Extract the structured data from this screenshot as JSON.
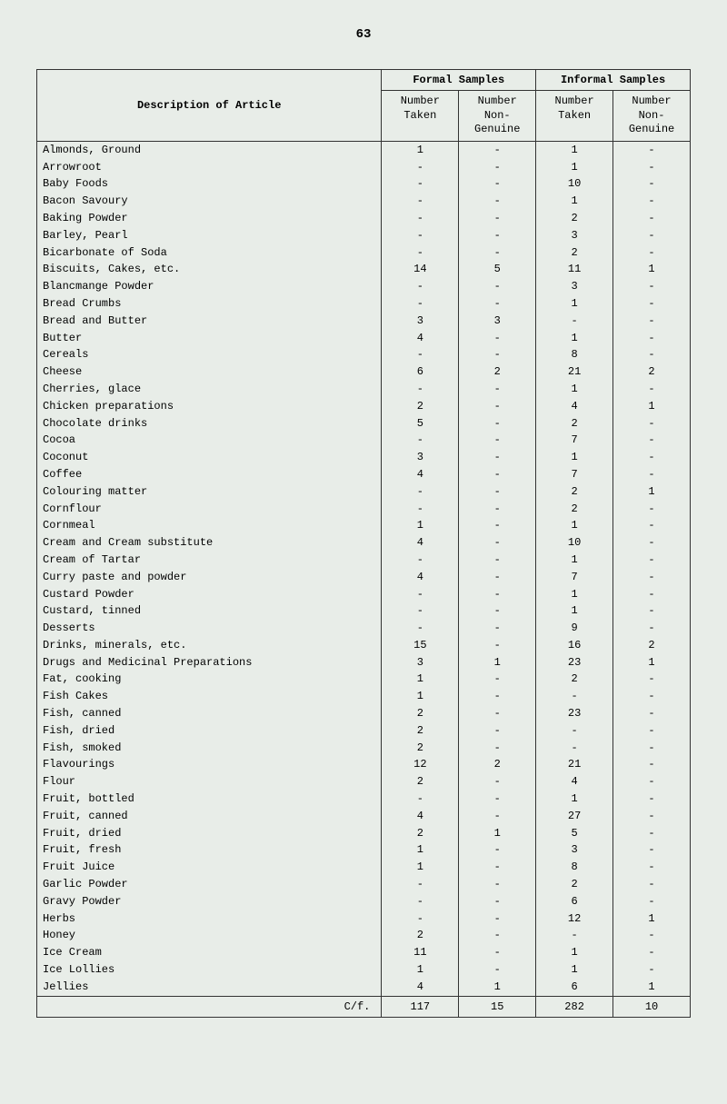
{
  "page_number": "63",
  "table": {
    "header": {
      "description": "Description of Article",
      "formal_group": "Formal Samples",
      "informal_group": "Informal Samples",
      "col_taken": "Number\nTaken",
      "col_nongenuine": "Number\nNon-\nGenuine"
    },
    "rows": [
      {
        "d": "Almonds, Ground",
        "ft": "1",
        "fn": "-",
        "it": "1",
        "in": "-"
      },
      {
        "d": "Arrowroot",
        "ft": "-",
        "fn": "-",
        "it": "1",
        "in": "-"
      },
      {
        "d": "Baby Foods",
        "ft": "-",
        "fn": "-",
        "it": "10",
        "in": "-"
      },
      {
        "d": "Bacon Savoury",
        "ft": "-",
        "fn": "-",
        "it": "1",
        "in": "-"
      },
      {
        "d": "Baking Powder",
        "ft": "-",
        "fn": "-",
        "it": "2",
        "in": "-"
      },
      {
        "d": "Barley, Pearl",
        "ft": "-",
        "fn": "-",
        "it": "3",
        "in": "-"
      },
      {
        "d": "Bicarbonate of Soda",
        "ft": "-",
        "fn": "-",
        "it": "2",
        "in": "-"
      },
      {
        "d": "Biscuits, Cakes, etc.",
        "ft": "14",
        "fn": "5",
        "it": "11",
        "in": "1"
      },
      {
        "d": "Blancmange Powder",
        "ft": "-",
        "fn": "-",
        "it": "3",
        "in": "-"
      },
      {
        "d": "Bread Crumbs",
        "ft": "-",
        "fn": "-",
        "it": "1",
        "in": "-"
      },
      {
        "d": "Bread and Butter",
        "ft": "3",
        "fn": "3",
        "it": "-",
        "in": "-"
      },
      {
        "d": "Butter",
        "ft": "4",
        "fn": "-",
        "it": "1",
        "in": "-"
      },
      {
        "d": "Cereals",
        "ft": "-",
        "fn": "-",
        "it": "8",
        "in": "-"
      },
      {
        "d": "Cheese",
        "ft": "6",
        "fn": "2",
        "it": "21",
        "in": "2"
      },
      {
        "d": "Cherries, glace",
        "ft": "-",
        "fn": "-",
        "it": "1",
        "in": "-"
      },
      {
        "d": "Chicken preparations",
        "ft": "2",
        "fn": "-",
        "it": "4",
        "in": "1"
      },
      {
        "d": "Chocolate drinks",
        "ft": "5",
        "fn": "-",
        "it": "2",
        "in": "-"
      },
      {
        "d": "Cocoa",
        "ft": "-",
        "fn": "-",
        "it": "7",
        "in": "-"
      },
      {
        "d": "Coconut",
        "ft": "3",
        "fn": "-",
        "it": "1",
        "in": "-"
      },
      {
        "d": "Coffee",
        "ft": "4",
        "fn": "-",
        "it": "7",
        "in": "-"
      },
      {
        "d": "Colouring matter",
        "ft": "-",
        "fn": "-",
        "it": "2",
        "in": "1"
      },
      {
        "d": "Cornflour",
        "ft": "-",
        "fn": "-",
        "it": "2",
        "in": "-"
      },
      {
        "d": "Cornmeal",
        "ft": "1",
        "fn": "-",
        "it": "1",
        "in": "-"
      },
      {
        "d": "Cream and Cream substitute",
        "ft": "4",
        "fn": "-",
        "it": "10",
        "in": "-"
      },
      {
        "d": "Cream of Tartar",
        "ft": "-",
        "fn": "-",
        "it": "1",
        "in": "-"
      },
      {
        "d": "Curry paste and powder",
        "ft": "4",
        "fn": "-",
        "it": "7",
        "in": "-"
      },
      {
        "d": "Custard Powder",
        "ft": "-",
        "fn": "-",
        "it": "1",
        "in": "-"
      },
      {
        "d": "Custard, tinned",
        "ft": "-",
        "fn": "-",
        "it": "1",
        "in": "-"
      },
      {
        "d": "Desserts",
        "ft": "-",
        "fn": "-",
        "it": "9",
        "in": "-"
      },
      {
        "d": "Drinks, minerals, etc.",
        "ft": "15",
        "fn": "-",
        "it": "16",
        "in": "2"
      },
      {
        "d": "Drugs and Medicinal Preparations",
        "ft": "3",
        "fn": "1",
        "it": "23",
        "in": "1"
      },
      {
        "d": "Fat, cooking",
        "ft": "1",
        "fn": "-",
        "it": "2",
        "in": "-"
      },
      {
        "d": "Fish Cakes",
        "ft": "1",
        "fn": "-",
        "it": "-",
        "in": "-"
      },
      {
        "d": "Fish, canned",
        "ft": "2",
        "fn": "-",
        "it": "23",
        "in": "-"
      },
      {
        "d": "Fish, dried",
        "ft": "2",
        "fn": "-",
        "it": "-",
        "in": "-"
      },
      {
        "d": "Fish, smoked",
        "ft": "2",
        "fn": "-",
        "it": "-",
        "in": "-"
      },
      {
        "d": "Flavourings",
        "ft": "12",
        "fn": "2",
        "it": "21",
        "in": "-"
      },
      {
        "d": "Flour",
        "ft": "2",
        "fn": "-",
        "it": "4",
        "in": "-"
      },
      {
        "d": "Fruit, bottled",
        "ft": "-",
        "fn": "-",
        "it": "1",
        "in": "-"
      },
      {
        "d": "Fruit, canned",
        "ft": "4",
        "fn": "-",
        "it": "27",
        "in": "-"
      },
      {
        "d": "Fruit, dried",
        "ft": "2",
        "fn": "1",
        "it": "5",
        "in": "-"
      },
      {
        "d": "Fruit, fresh",
        "ft": "1",
        "fn": "-",
        "it": "3",
        "in": "-"
      },
      {
        "d": "Fruit Juice",
        "ft": "1",
        "fn": "-",
        "it": "8",
        "in": "-"
      },
      {
        "d": "Garlic Powder",
        "ft": "-",
        "fn": "-",
        "it": "2",
        "in": "-"
      },
      {
        "d": "Gravy Powder",
        "ft": "-",
        "fn": "-",
        "it": "6",
        "in": "-"
      },
      {
        "d": "Herbs",
        "ft": "-",
        "fn": "-",
        "it": "12",
        "in": "1"
      },
      {
        "d": "Honey",
        "ft": "2",
        "fn": "-",
        "it": "-",
        "in": "-"
      },
      {
        "d": "Ice Cream",
        "ft": "11",
        "fn": "-",
        "it": "1",
        "in": "-"
      },
      {
        "d": "Ice Lollies",
        "ft": "1",
        "fn": "-",
        "it": "1",
        "in": "-"
      },
      {
        "d": "Jellies",
        "ft": "4",
        "fn": "1",
        "it": "6",
        "in": "1"
      }
    ],
    "footer": {
      "label": "C/f.",
      "ft": "117",
      "fn": "15",
      "it": "282",
      "in": "10"
    }
  }
}
